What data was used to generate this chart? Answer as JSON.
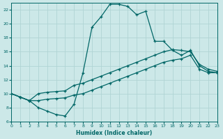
{
  "xlabel": "Humidex (Indice chaleur)",
  "xlim": [
    0,
    23
  ],
  "ylim": [
    6,
    23
  ],
  "xticks": [
    0,
    1,
    2,
    3,
    4,
    5,
    6,
    7,
    8,
    9,
    10,
    11,
    12,
    13,
    14,
    15,
    16,
    17,
    18,
    19,
    20,
    21,
    22,
    23
  ],
  "yticks": [
    6,
    8,
    10,
    12,
    14,
    16,
    18,
    20,
    22
  ],
  "bg_color": "#cce8e8",
  "line_color": "#006666",
  "grid_color": "#b0d4d4",
  "line1_x": [
    0,
    1,
    2,
    3,
    4,
    5,
    6,
    7,
    8,
    9,
    10,
    11,
    12,
    13,
    14,
    15,
    16,
    17,
    18,
    19,
    20,
    21,
    22,
    23
  ],
  "line1_y": [
    10.0,
    9.5,
    9.0,
    8.0,
    7.5,
    7.0,
    6.8,
    8.5,
    13.0,
    19.5,
    21.0,
    22.8,
    22.8,
    22.5,
    21.3,
    21.8,
    17.5,
    17.5,
    16.2,
    15.5,
    16.2,
    14.0,
    13.2,
    13.0
  ],
  "line2_x": [
    0,
    1,
    2,
    3,
    4,
    5,
    6,
    7,
    8,
    9,
    10,
    11,
    12,
    13,
    14,
    15,
    16,
    17,
    18,
    19,
    20,
    21,
    22,
    23
  ],
  "line2_y": [
    10.0,
    9.5,
    9.0,
    10.0,
    10.2,
    10.3,
    10.4,
    11.2,
    11.5,
    12.0,
    12.5,
    13.0,
    13.5,
    14.0,
    14.5,
    15.0,
    15.5,
    16.0,
    16.3,
    16.2,
    16.0,
    14.2,
    13.5,
    13.2
  ],
  "line3_x": [
    0,
    1,
    2,
    3,
    4,
    5,
    6,
    7,
    8,
    9,
    10,
    11,
    12,
    13,
    14,
    15,
    16,
    17,
    18,
    19,
    20,
    21,
    22,
    23
  ],
  "line3_y": [
    10.0,
    9.5,
    9.0,
    9.0,
    9.2,
    9.3,
    9.4,
    9.8,
    10.0,
    10.5,
    11.0,
    11.5,
    12.0,
    12.5,
    13.0,
    13.5,
    14.0,
    14.5,
    14.8,
    15.0,
    15.5,
    13.5,
    13.0,
    13.0
  ]
}
